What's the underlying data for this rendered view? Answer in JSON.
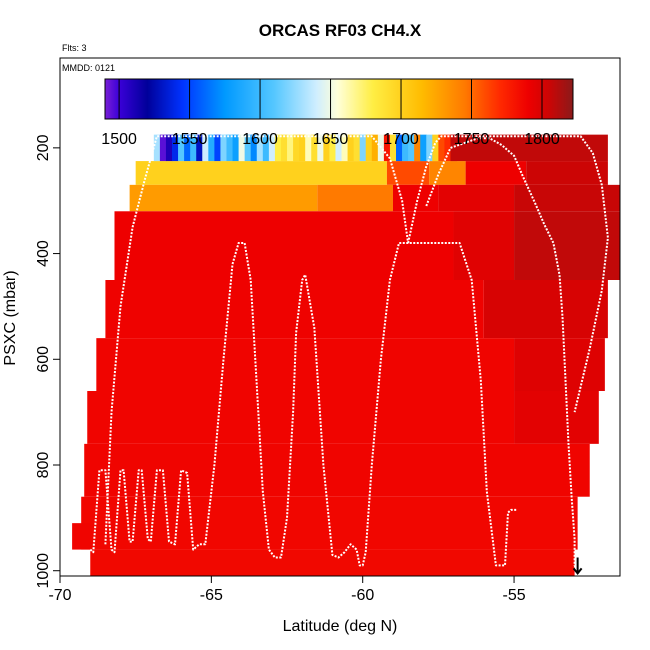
{
  "chart_data": {
    "type": "heatmap",
    "title": "ORCAS RF03 CH4.X",
    "flights_note": "Flts: 3",
    "date_note": "MMDD: 0121",
    "xlabel": "Latitude (deg N)",
    "ylabel": "PSXC (mbar)",
    "xlim": [
      -70,
      -51.5
    ],
    "ylim": [
      1010,
      30
    ],
    "x_ticks": [
      -70,
      -65,
      -60,
      -55
    ],
    "x_tick_labels": [
      "-70",
      "-65",
      "-60",
      "-55"
    ],
    "y_ticks": [
      200,
      400,
      600,
      800,
      1000
    ],
    "y_tick_labels": [
      "200",
      "400",
      "600",
      "800",
      "1000"
    ],
    "colorbar": {
      "range": [
        1490,
        1822
      ],
      "ticks": [
        1500,
        1550,
        1600,
        1650,
        1700,
        1750,
        1800
      ],
      "tick_labels": [
        "1500",
        "1550",
        "1600",
        "1650",
        "1700",
        "1750",
        "1800"
      ],
      "stops": [
        {
          "value": 1490,
          "color": "#7a1fd6"
        },
        {
          "value": 1500,
          "color": "#3a00d8"
        },
        {
          "value": 1520,
          "color": "#00009a"
        },
        {
          "value": 1545,
          "color": "#0033ff"
        },
        {
          "value": 1575,
          "color": "#0099ff"
        },
        {
          "value": 1610,
          "color": "#55c7ff"
        },
        {
          "value": 1640,
          "color": "#cfeeff"
        },
        {
          "value": 1655,
          "color": "#ffffd8"
        },
        {
          "value": 1680,
          "color": "#ffee44"
        },
        {
          "value": 1715,
          "color": "#ffbb00"
        },
        {
          "value": 1745,
          "color": "#ff7a00"
        },
        {
          "value": 1770,
          "color": "#ff2a00"
        },
        {
          "value": 1790,
          "color": "#ee0000"
        },
        {
          "value": 1805,
          "color": "#cc0505"
        },
        {
          "value": 1822,
          "color": "#8b1a1a"
        }
      ]
    },
    "top_band": {
      "p_top": 175,
      "p_bottom": 225,
      "x": [
        -66.9,
        -66.7,
        -66.5,
        -66.3,
        -66.1,
        -65.9,
        -65.7,
        -65.5,
        -65.3,
        -65.1,
        -64.9,
        -64.7,
        -64.5,
        -64.3,
        -64.1,
        -63.9,
        -63.7,
        -63.5,
        -63.3,
        -63.1,
        -62.9,
        -62.7,
        -62.5,
        -62.3,
        -62.1,
        -61.9,
        -61.7,
        -61.5,
        -61.3,
        -61.1,
        -60.9,
        -60.7,
        -60.5,
        -60.3,
        -60.1,
        -59.9,
        -59.7,
        -59.5,
        -59.3,
        -59.1,
        -58.9,
        -58.7,
        -58.5,
        -58.3,
        -58.1,
        -57.9,
        -57.7,
        -57.5,
        -57.3,
        -57.1
      ],
      "values": [
        1630,
        1495,
        1510,
        1540,
        1610,
        1560,
        1600,
        1530,
        1640,
        1590,
        1550,
        1620,
        1600,
        1580,
        1650,
        1610,
        1570,
        1630,
        1600,
        1640,
        1680,
        1690,
        1670,
        1695,
        1700,
        1660,
        1690,
        1650,
        1700,
        1680,
        1640,
        1660,
        1700,
        1690,
        1620,
        1700,
        1720,
        1650,
        1780,
        1690,
        1560,
        1600,
        1610,
        1740,
        1580,
        1620,
        1700,
        1760,
        1770,
        1800
      ]
    },
    "rows": [
      {
        "p_top": 225,
        "p_bottom": 270,
        "x_start": -67.5,
        "x_end": -51.9,
        "segments": [
          {
            "x_end": -59.2,
            "value": 1700
          },
          {
            "x_end": -57.8,
            "value": 1760
          },
          {
            "x_end": -56.6,
            "value": 1740
          },
          {
            "x_end": -54.6,
            "value": 1790
          },
          {
            "x_end": -51.9,
            "value": 1805
          }
        ]
      },
      {
        "p_top": 270,
        "p_bottom": 320,
        "x_start": -67.7,
        "x_end": -51.5,
        "segments": [
          {
            "x_end": -61.5,
            "value": 1730
          },
          {
            "x_end": -59.0,
            "value": 1745
          },
          {
            "x_end": -57.5,
            "value": 1790
          },
          {
            "x_end": -55.0,
            "value": 1795
          },
          {
            "x_end": -51.5,
            "value": 1806
          }
        ]
      },
      {
        "p_top": 320,
        "p_bottom": 450,
        "x_start": -68.2,
        "x_end": -51.5,
        "segments": [
          {
            "x_end": -57.0,
            "value": 1790
          },
          {
            "x_end": -55.0,
            "value": 1796
          },
          {
            "x_end": -51.5,
            "value": 1808
          }
        ]
      },
      {
        "p_top": 450,
        "p_bottom": 560,
        "x_start": -68.5,
        "x_end": -51.9,
        "segments": [
          {
            "x_end": -56.0,
            "value": 1789
          },
          {
            "x_end": -51.9,
            "value": 1800
          }
        ]
      },
      {
        "p_top": 560,
        "p_bottom": 660,
        "x_start": -68.8,
        "x_end": -52.0,
        "segments": [
          {
            "x_end": -55.0,
            "value": 1788
          },
          {
            "x_end": -52.0,
            "value": 1797
          }
        ]
      },
      {
        "p_top": 660,
        "p_bottom": 760,
        "x_start": -69.1,
        "x_end": -52.2,
        "segments": [
          {
            "x_end": -55.0,
            "value": 1788
          },
          {
            "x_end": -52.2,
            "value": 1795
          }
        ]
      },
      {
        "p_top": 760,
        "p_bottom": 860,
        "x_start": -69.2,
        "x_end": -52.5,
        "segments": [
          {
            "x_end": -52.5,
            "value": 1788
          }
        ]
      },
      {
        "p_top": 860,
        "p_bottom": 960,
        "x_start": -69.3,
        "x_end": -52.9,
        "segments": [
          {
            "x_end": -52.9,
            "value": 1787
          }
        ]
      },
      {
        "p_top": 960,
        "p_bottom": 1010,
        "x_start": -69.0,
        "x_end": -53.0,
        "segments": [
          {
            "x_end": -53.0,
            "value": 1786
          }
        ]
      }
    ],
    "left_stub": {
      "x_start": -69.6,
      "x_end": -69.0,
      "p_top": 910,
      "p_bottom": 960,
      "value": 1788
    },
    "flight_tracks": [
      {
        "name": "flight-track-1",
        "x": [
          -69.0,
          -68.9,
          -68.7,
          -68.5,
          -68.3,
          -68.2,
          -68.0,
          -67.9,
          -67.7,
          -67.6,
          -67.4,
          -67.3,
          -67.1,
          -67.0,
          -66.8,
          -66.6,
          -66.4,
          -66.2,
          -66.0,
          -65.8,
          -65.6,
          -65.4,
          -65.2,
          -64.9,
          -64.6,
          -64.3,
          -64.1,
          -63.9,
          -63.7,
          -63.5,
          -63.3,
          -63.1,
          -62.9,
          -62.7,
          -62.5,
          -62.3,
          -62.2,
          -62.0,
          -61.9,
          -61.6,
          -61.3,
          -61.0,
          -60.8,
          -60.6,
          -60.4,
          -60.2,
          -60.1,
          -60.0,
          -59.9,
          -59.7,
          -59.4,
          -59.1,
          -58.8,
          -58.5,
          -58.3,
          -58.1,
          -57.9,
          -57.5,
          -57.3,
          -57.1,
          -56.8,
          -56.4,
          -56.1,
          -55.9,
          -55.6,
          -55.3,
          -55.2,
          -55.1,
          -55.0,
          -54.9
        ],
        "p": [
          960,
          965,
          810,
          810,
          960,
          965,
          810,
          810,
          945,
          945,
          810,
          810,
          940,
          945,
          810,
          810,
          945,
          950,
          810,
          815,
          960,
          950,
          950,
          800,
          600,
          420,
          380,
          380,
          450,
          650,
          850,
          960,
          975,
          975,
          900,
          700,
          550,
          450,
          440,
          540,
          800,
          970,
          975,
          965,
          950,
          960,
          990,
          990,
          965,
          800,
          600,
          450,
          380,
          380,
          380,
          380,
          380,
          380,
          380,
          380,
          380,
          450,
          640,
          850,
          990,
          990,
          890,
          885,
          885,
          885
        ]
      },
      {
        "name": "flight-track-2",
        "x": [
          -68.5,
          -68.3,
          -68.0,
          -67.6,
          -67.2,
          -66.8,
          -66.6,
          -66.4,
          -66.0,
          -65.3,
          -64.6,
          -63.9,
          -63.2,
          -62.5,
          -61.8,
          -61.1,
          -60.4,
          -59.7,
          -59.1,
          -58.7,
          -58.5
        ],
        "p": [
          950,
          700,
          500,
          350,
          260,
          178,
          178,
          178,
          178,
          178,
          178,
          178,
          178,
          178,
          178,
          178,
          178,
          178,
          220,
          300,
          380
        ]
      },
      {
        "name": "flight-track-3",
        "x": [
          -58.5,
          -58.2,
          -57.9,
          -57.6,
          -57.4,
          -57.2,
          -56.8,
          -56.2,
          -55.6,
          -55.0,
          -54.4,
          -53.8,
          -53.2,
          -52.8,
          -52.4,
          -52.1,
          -51.9,
          -52.1,
          -52.5,
          -53.0
        ],
        "p": [
          380,
          300,
          235,
          190,
          178,
          178,
          178,
          178,
          178,
          178,
          178,
          178,
          178,
          178,
          210,
          270,
          370,
          470,
          580,
          700
        ]
      },
      {
        "name": "flight-track-4",
        "x": [
          -57.9,
          -57.5,
          -57.1,
          -56.6,
          -56.2,
          -55.8,
          -55.4,
          -55.0,
          -54.7,
          -54.3,
          -54.0,
          -53.7,
          -53.5,
          -53.4,
          -53.3,
          -53.2,
          -53.1,
          -53.0,
          -53.0,
          -52.9
        ],
        "p": [
          310,
          250,
          200,
          190,
          182,
          182,
          195,
          215,
          255,
          305,
          345,
          380,
          440,
          520,
          640,
          760,
          860,
          940,
          990,
          1005
        ]
      }
    ],
    "arrow": {
      "x": -52.9,
      "p_top": 975,
      "p_bottom": 1005
    }
  }
}
